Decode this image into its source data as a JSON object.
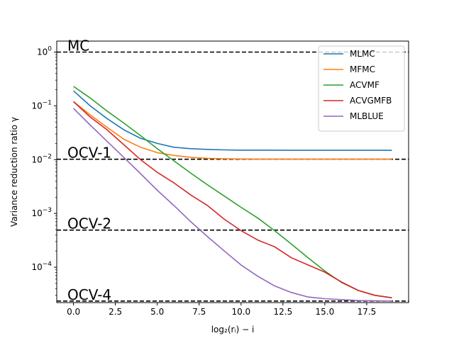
{
  "chart_data": {
    "type": "line",
    "title": "",
    "xlabel": "log₂(rᵢ) − i",
    "ylabel": "Variance reduction ratio γ",
    "y_scale": "log",
    "grid": false,
    "legend_position": "top-right",
    "xlim": [
      -1,
      20
    ],
    "ylim": [
      2.2e-05,
      1.6
    ],
    "x_ticks": [
      0.0,
      2.5,
      5.0,
      7.5,
      10.0,
      12.5,
      15.0,
      17.5
    ],
    "x_tick_labels": [
      "0.0",
      "2.5",
      "5.0",
      "7.5",
      "10.0",
      "12.5",
      "15.0",
      "17.5"
    ],
    "y_ticks": [
      0.0001,
      0.001,
      0.01,
      0.1,
      1
    ],
    "y_tick_bases": [
      "10",
      "10",
      "10",
      "10",
      "10"
    ],
    "y_tick_exps": [
      "−4",
      "−3",
      "−2",
      "−1",
      "0"
    ],
    "reference_lines": [
      {
        "label": "MC",
        "value": 1.0
      },
      {
        "label": "OCV-1",
        "value": 0.0102
      },
      {
        "label": "OCV-2",
        "value": 0.00049
      },
      {
        "label": "OCV-4",
        "value": 2.35e-05
      }
    ],
    "x": [
      0,
      1,
      2,
      3,
      4,
      5,
      6,
      7,
      8,
      9,
      10,
      11,
      12,
      13,
      14,
      15,
      16,
      17,
      18,
      19
    ],
    "series": [
      {
        "name": "MLMC",
        "color": "#1f77b4",
        "values": [
          0.19,
          0.1,
          0.058,
          0.036,
          0.025,
          0.02,
          0.017,
          0.016,
          0.0155,
          0.0152,
          0.015,
          0.015,
          0.015,
          0.0149,
          0.0149,
          0.0149,
          0.0149,
          0.0149,
          0.0149,
          0.0149
        ]
      },
      {
        "name": "MFMC",
        "color": "#ff7f0e",
        "values": [
          0.12,
          0.068,
          0.04,
          0.024,
          0.017,
          0.0135,
          0.012,
          0.011,
          0.0106,
          0.0104,
          0.0103,
          0.0102,
          0.0102,
          0.0102,
          0.0102,
          0.0102,
          0.0102,
          0.0102,
          0.0102,
          0.0102
        ]
      },
      {
        "name": "ACVMF",
        "color": "#2ca02c",
        "values": [
          0.23,
          0.14,
          0.08,
          0.048,
          0.028,
          0.016,
          0.0095,
          0.0056,
          0.0034,
          0.0021,
          0.0013,
          0.00082,
          0.00048,
          0.00027,
          0.00015,
          8.5e-05,
          5.2e-05,
          3.7e-05,
          3e-05,
          2.7e-05
        ]
      },
      {
        "name": "ACVGMFB",
        "color": "#d62728",
        "values": [
          0.12,
          0.062,
          0.036,
          0.019,
          0.01,
          0.0058,
          0.0037,
          0.0022,
          0.0014,
          0.00078,
          0.00048,
          0.00032,
          0.00024,
          0.00015,
          0.00011,
          8.1e-05,
          5.3e-05,
          3.7e-05,
          3e-05,
          2.7e-05
        ]
      },
      {
        "name": "MLBLUE",
        "color": "#9467bd",
        "values": [
          0.09,
          0.044,
          0.022,
          0.011,
          0.0055,
          0.0027,
          0.0014,
          0.0007,
          0.00037,
          0.0002,
          0.00011,
          6.8e-05,
          4.5e-05,
          3.4e-05,
          2.8e-05,
          2.6e-05,
          2.5e-05,
          2.4e-05,
          2.38e-05,
          2.35e-05
        ]
      }
    ]
  }
}
